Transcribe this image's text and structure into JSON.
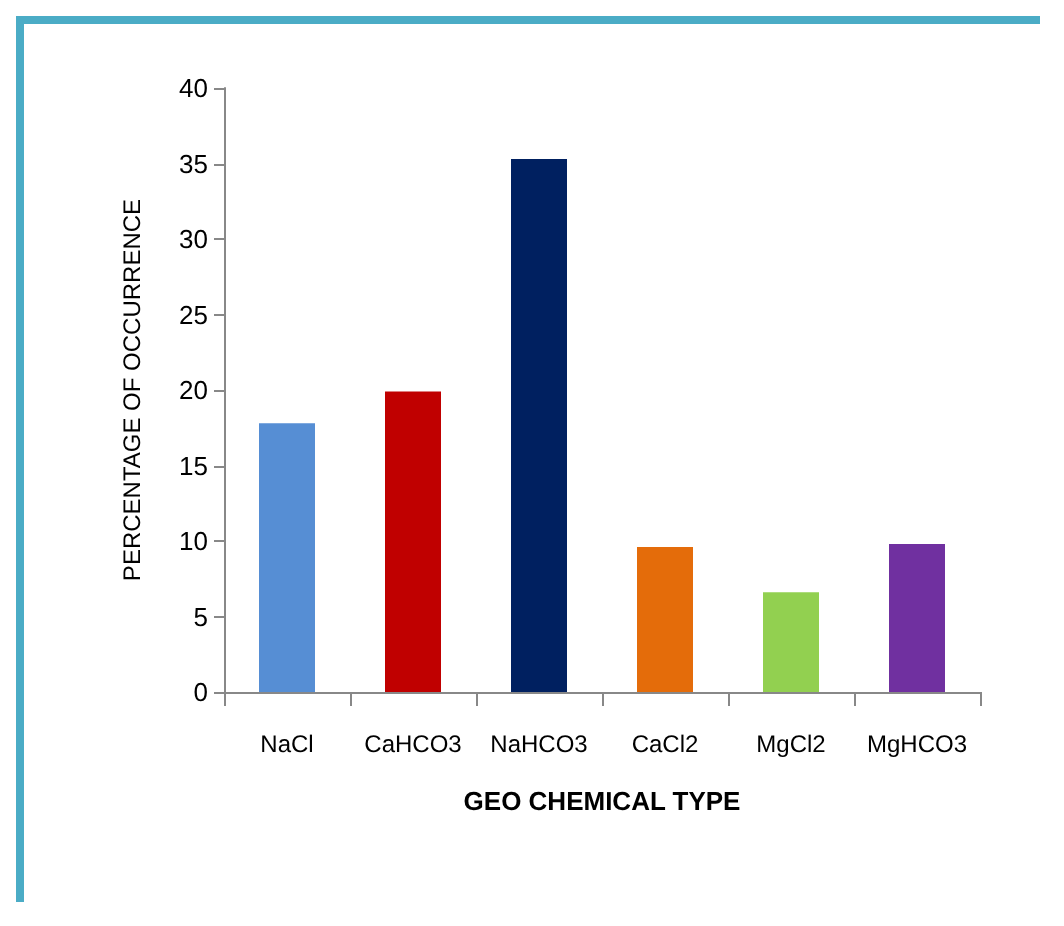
{
  "chart_data": {
    "type": "bar",
    "xlabel": "GEO CHEMICAL TYPE",
    "ylabel": "PERCENTAGE OF OCCURRENCE",
    "categories": [
      "NaCl",
      "CaHCO3",
      "NaHCO3",
      "CaCl2",
      "MgCl2",
      "MgHCO3"
    ],
    "values": [
      17.8,
      19.9,
      35.3,
      9.6,
      6.6,
      9.8
    ],
    "colors": [
      "#568ed4",
      "#c00000",
      "#002060",
      "#e46c0a",
      "#92d050",
      "#7030a0"
    ],
    "ylim": [
      0,
      40
    ],
    "yticks": [
      0,
      5,
      10,
      15,
      20,
      25,
      30,
      35,
      40
    ],
    "grid": false
  }
}
